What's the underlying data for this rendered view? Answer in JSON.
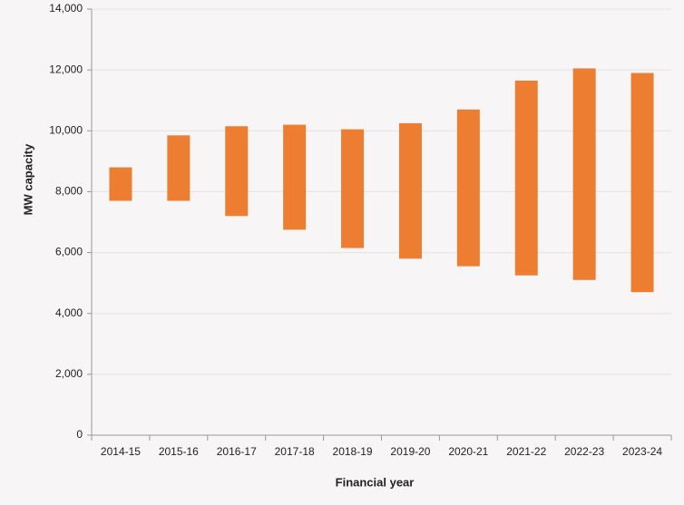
{
  "chart_data": {
    "type": "range-bar",
    "x_label": "Financial year",
    "y_label": "MW capacity",
    "categories": [
      "2014-15",
      "2015-16",
      "2016-17",
      "2017-18",
      "2018-19",
      "2019-20",
      "2020-21",
      "2021-22",
      "2022-23",
      "2023-24"
    ],
    "low": [
      7700,
      7700,
      7200,
      6750,
      6150,
      5800,
      5550,
      5250,
      5100,
      4700
    ],
    "high": [
      8800,
      9850,
      10150,
      10200,
      10050,
      10250,
      10700,
      11650,
      12050,
      11900
    ],
    "color": "#ed7d31",
    "ylim": [
      0,
      14000
    ],
    "yticks": [
      0,
      {
        "value": 2000,
        "label": "2,000"
      },
      {
        "value": 4000,
        "label": "4,000"
      },
      {
        "value": 6000,
        "label": "6,000"
      },
      {
        "value": 8000,
        "label": "8,000"
      },
      {
        "value": 10000,
        "label": "10,000"
      },
      {
        "value": 12000,
        "label": "12,000"
      },
      {
        "value": 14000,
        "label": "14,000"
      }
    ],
    "grid": true
  }
}
